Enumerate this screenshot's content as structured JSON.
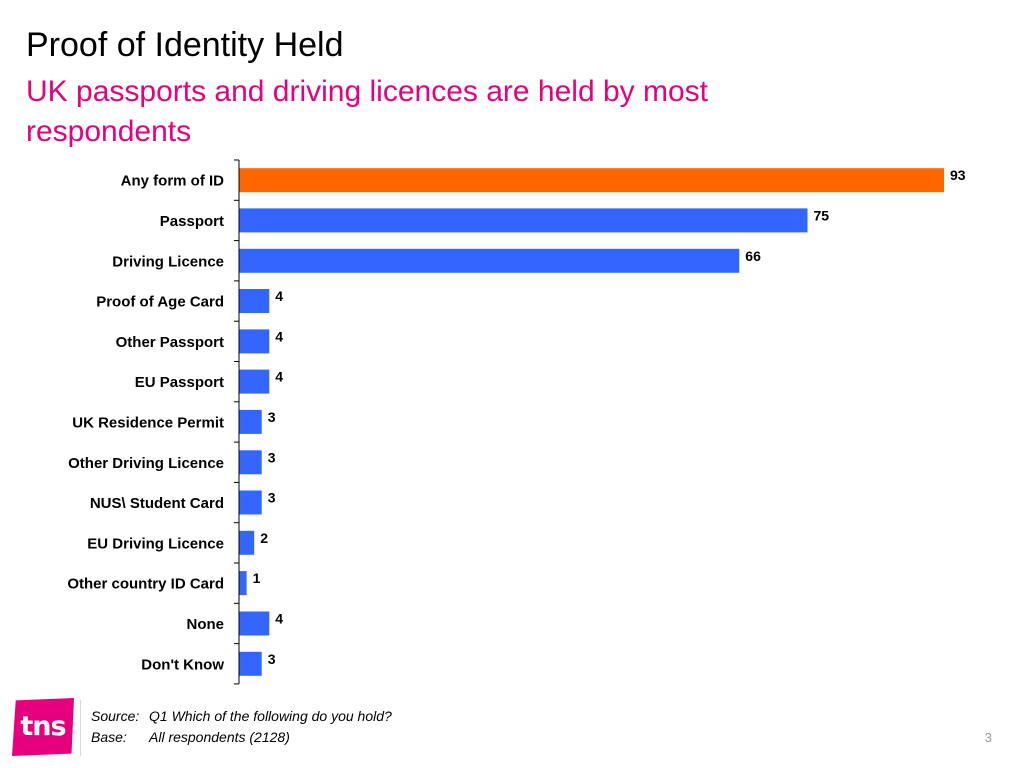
{
  "slide": {
    "title": "Proof of Identity Held",
    "subtitle": "UK passports and driving licences are held by most respondents",
    "source_label": "Source:",
    "source_text": "Q1  Which of the following do you hold?",
    "base_label": "Base:",
    "base_text": "All respondents (2128)",
    "page_number": "3",
    "logo_text": "tns"
  },
  "colors": {
    "accent": "#e6007e",
    "highlight_bar": "#ff6600",
    "bar": "#3366ff"
  },
  "chart_data": {
    "type": "bar",
    "orientation": "horizontal",
    "categories": [
      "Any form of ID",
      "Passport",
      "Driving Licence",
      "Proof of Age Card",
      "Other Passport",
      "EU Passport",
      "UK Residence Permit",
      "Other Driving Licence",
      "NUS\\ Student Card",
      "EU Driving Licence",
      "Other country ID Card",
      "None",
      "Don't Know"
    ],
    "values": [
      93,
      75,
      66,
      4,
      4,
      4,
      3,
      3,
      3,
      2,
      1,
      4,
      3
    ],
    "highlight_index": 0,
    "xlim": [
      0,
      93
    ],
    "grid": false,
    "legend": "none",
    "data_labels": true
  }
}
